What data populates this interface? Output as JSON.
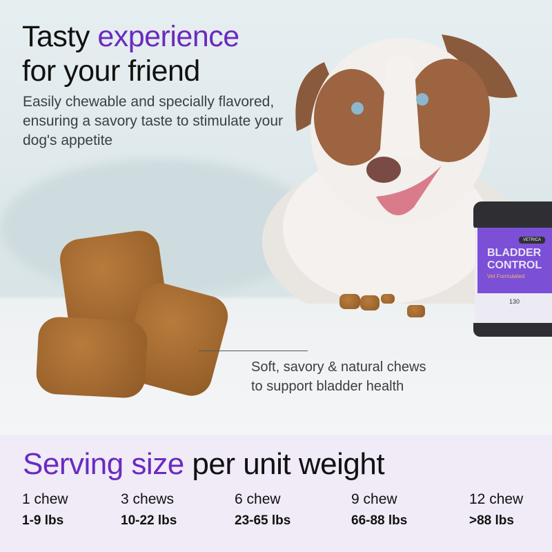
{
  "headline": {
    "line1_plain": "Tasty ",
    "line1_accent": "experience",
    "line2": "for your friend"
  },
  "subtext": "Easily chewable and specially flavored, ensuring a savory taste to stimulate your dog's appetite",
  "callout": {
    "line1": "Soft, savory & natural chews",
    "line2": "to support bladder health"
  },
  "product": {
    "brand": "VETRICA",
    "name_line1": "BLADDER",
    "name_line2": "CONTROL",
    "tagline": "Vet Formulated",
    "count": "130"
  },
  "serving": {
    "title_accent": "Serving size",
    "title_plain": " per unit weight",
    "items": [
      {
        "chews": "1 chew",
        "weight": "1-9 lbs"
      },
      {
        "chews": "3 chews",
        "weight": "10-22 lbs"
      },
      {
        "chews": "6 chew",
        "weight": "23-65 lbs"
      },
      {
        "chews": "9 chew",
        "weight": "66-88 lbs"
      },
      {
        "chews": "12 chew",
        "weight": ">88 lbs"
      }
    ]
  },
  "colors": {
    "accent": "#6a2bc0",
    "panel": "#f0ebf7",
    "jar_label": "#7b4fd6"
  }
}
